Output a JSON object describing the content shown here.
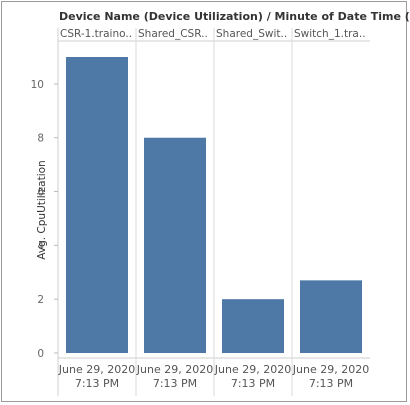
{
  "header": {
    "title": "Device Name (Device Utilization)  /  Minute of Date Time (D..."
  },
  "chart_data": {
    "type": "bar",
    "title": "",
    "categories": [
      "CSR-1.traino..",
      "Shared_CSR..",
      "Shared_Swit..",
      "Switch_1.tra.."
    ],
    "x_labels": [
      [
        "June 29, 2020",
        "7:13 PM"
      ],
      [
        "June 29, 2020",
        "7:13 PM"
      ],
      [
        "June 29, 2020",
        "7:13 PM"
      ],
      [
        "June 29, 2020",
        "7:13 PM"
      ]
    ],
    "values": [
      11.0,
      8.0,
      2.0,
      2.7
    ],
    "ylabel": "Avg. CpuUtilization",
    "xlabel": "",
    "ylim": [
      0,
      11.6
    ],
    "yticks": [
      0,
      2,
      4,
      6,
      8,
      10
    ],
    "grid": false,
    "bar_color": "#4e79a7"
  }
}
